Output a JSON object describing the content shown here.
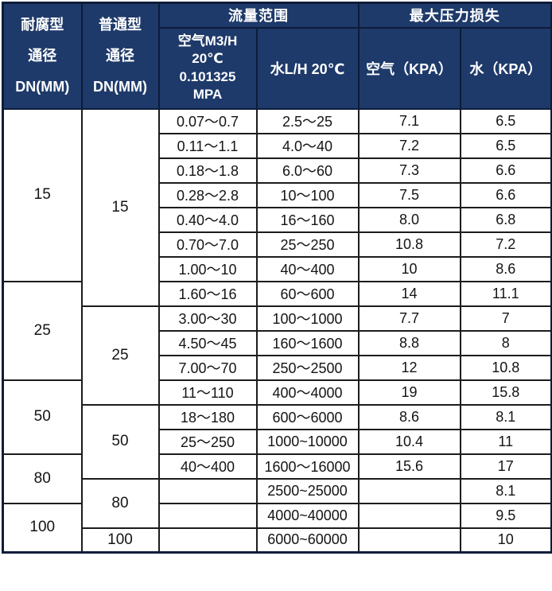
{
  "colors": {
    "header_bg": "#1e3a6a",
    "header_text": "#ffffff",
    "outer_border": "#0d1c39",
    "body_border": "#1c1c1c",
    "body_text": "#141414"
  },
  "table": {
    "header": {
      "corrosion_dn": "耐腐型\n通径\nDN(MM)",
      "normal_dn": "普通型\n通径\nDN(MM)",
      "flow_range_group": "流量范围",
      "pressure_loss_group": "最大压力损失",
      "air_flow": "空气M3/H\n20℃\n0.101325\nMPA",
      "water_flow": "水L/H 20℃",
      "air_kpa": "空气（KPA）",
      "water_kpa": "水（KPA）"
    },
    "col1_spans": [
      {
        "label": "15",
        "rowspan": 7
      },
      {
        "label": "25",
        "rowspan": 4
      },
      {
        "label": "50",
        "rowspan": 3
      },
      {
        "label": "80",
        "rowspan": 2
      },
      {
        "label": "100",
        "rowspan": 2
      }
    ],
    "col2_spans": [
      {
        "label": "15",
        "rowspan": 8
      },
      {
        "label": "25",
        "rowspan": 4
      },
      {
        "label": "50",
        "rowspan": 3
      },
      {
        "label": "80",
        "rowspan": 2
      },
      {
        "label": "100",
        "rowspan": 1
      }
    ],
    "rows": [
      [
        "0.07～0.7",
        "2.5～25",
        "7.1",
        "6.5"
      ],
      [
        "0.11～1.1",
        "4.0～40",
        "7.2",
        "6.5"
      ],
      [
        "0.18～1.8",
        "6.0～60",
        "7.3",
        "6.6"
      ],
      [
        "0.28～2.8",
        "10～100",
        "7.5",
        "6.6"
      ],
      [
        "0.40～4.0",
        "16～160",
        "8.0",
        "6.8"
      ],
      [
        "0.70～7.0",
        "25～250",
        "10.8",
        "7.2"
      ],
      [
        "1.00～10",
        "40～400",
        "10",
        "8.6"
      ],
      [
        "1.60～16",
        "60～600",
        "14",
        "11.1"
      ],
      [
        "3.00～30",
        "100～1000",
        "7.7",
        "7"
      ],
      [
        "4.50～45",
        "160～1600",
        "8.8",
        "8"
      ],
      [
        "7.00～70",
        "250～2500",
        "12",
        "10.8"
      ],
      [
        "11～110",
        "400～4000",
        "19",
        "15.8"
      ],
      [
        "18～180",
        "600～6000",
        "8.6",
        "8.1"
      ],
      [
        "25～250",
        "1000~10000",
        "10.4",
        "11"
      ],
      [
        "40～400",
        "1600～16000",
        "15.6",
        "17"
      ],
      [
        "",
        "2500~25000",
        "",
        "8.1"
      ],
      [
        "",
        "4000~40000",
        "",
        "9.5"
      ],
      [
        "",
        "6000~60000",
        "",
        "10"
      ]
    ]
  }
}
